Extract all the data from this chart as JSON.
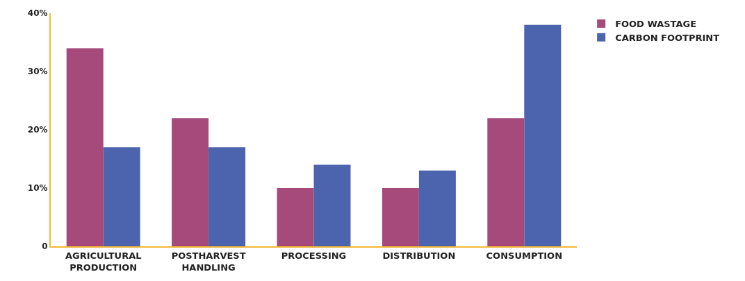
{
  "chart_data": {
    "type": "bar",
    "categories": [
      "AGRICULTURAL\nPRODUCTION",
      "POSTHARVEST\nHANDLING",
      "PROCESSING",
      "DISTRIBUTION",
      "CONSUMPTION"
    ],
    "series": [
      {
        "name": "FOOD WASTAGE",
        "color": "#a54a7b",
        "values": [
          34,
          22,
          10,
          10,
          22
        ]
      },
      {
        "name": "CARBON FOOTPRINT",
        "color": "#4c63ad",
        "values": [
          17,
          17,
          14,
          13,
          38
        ]
      }
    ],
    "ylim": [
      0,
      40
    ],
    "yticks": [
      {
        "value": 0,
        "label": "0"
      },
      {
        "value": 10,
        "label": "10%"
      },
      {
        "value": 20,
        "label": "20%"
      },
      {
        "value": 30,
        "label": "30%"
      },
      {
        "value": 40,
        "label": "40%"
      }
    ],
    "legend": "top right"
  }
}
